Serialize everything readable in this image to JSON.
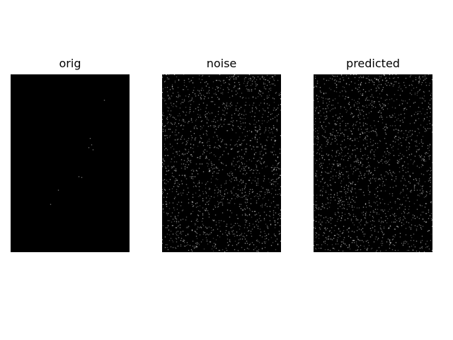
{
  "figure": {
    "panels": [
      {
        "title": "orig",
        "style": "sparse"
      },
      {
        "title": "noise",
        "style": "dense"
      },
      {
        "title": "predicted",
        "style": "dense"
      }
    ],
    "colors": {
      "background": "#ffffff",
      "image_background": "#000000",
      "pixel": "#ffffff"
    }
  }
}
